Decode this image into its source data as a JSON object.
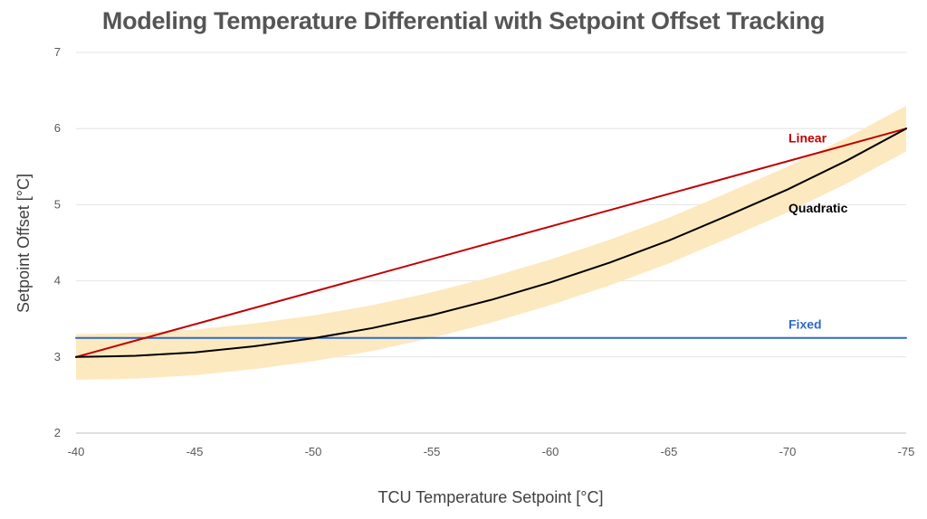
{
  "chart_data": {
    "type": "line",
    "title": "Modeling Temperature Differential with Setpoint Offset Tracking",
    "xlabel": "TCU Temperature Setpoint [°C]",
    "ylabel": "Setpoint Offset [°C]",
    "xlim": [
      -40,
      -75
    ],
    "ylim": [
      2,
      7
    ],
    "x_ticks": [
      -40,
      -45,
      -50,
      -55,
      -60,
      -65,
      -70,
      -75
    ],
    "y_ticks": [
      2,
      3,
      4,
      5,
      6,
      7
    ],
    "grid": "horizontal",
    "colors": {
      "linear": "#c00000",
      "quadratic": "#000000",
      "fixed": "#2e6bc4",
      "band": "#fde9c0",
      "grid": "#e4e4e4",
      "axis": "#bfbfbf"
    },
    "series": [
      {
        "key": "fixed",
        "name": "Fixed",
        "x": [
          -40,
          -75
        ],
        "y": [
          3.25,
          3.25
        ]
      },
      {
        "key": "linear",
        "name": "Linear",
        "x": [
          -40,
          -75
        ],
        "y": [
          3.0,
          6.0
        ]
      },
      {
        "key": "quadratic",
        "name": "Quadratic",
        "x": [
          -40,
          -42.5,
          -45,
          -47.5,
          -50,
          -52.5,
          -55,
          -57.5,
          -60,
          -62.5,
          -65,
          -67.5,
          -70,
          -72.5,
          -75
        ],
        "y": [
          3.0,
          3.015,
          3.06,
          3.14,
          3.245,
          3.38,
          3.55,
          3.75,
          3.98,
          4.24,
          4.53,
          4.86,
          5.2,
          5.58,
          6.0
        ]
      }
    ],
    "band": {
      "around": "quadratic",
      "x": [
        -40,
        -42.5,
        -45,
        -47.5,
        -50,
        -52.5,
        -55,
        -57.5,
        -60,
        -62.5,
        -65,
        -67.5,
        -70,
        -72.5,
        -75
      ],
      "upper": [
        3.3,
        3.315,
        3.36,
        3.44,
        3.545,
        3.68,
        3.85,
        4.05,
        4.28,
        4.54,
        4.83,
        5.16,
        5.5,
        5.88,
        6.3
      ],
      "lower": [
        2.7,
        2.715,
        2.76,
        2.84,
        2.945,
        3.08,
        3.25,
        3.45,
        3.68,
        3.94,
        4.23,
        4.56,
        4.9,
        5.28,
        5.7
      ]
    },
    "annotations": [
      {
        "series": "linear",
        "text": "Linear",
        "x": -70,
        "y": 5.88
      },
      {
        "series": "quadratic",
        "text": "Quadratic",
        "x": -70,
        "y": 4.96
      },
      {
        "series": "fixed",
        "text": "Fixed",
        "x": -70,
        "y": 3.43
      }
    ]
  }
}
